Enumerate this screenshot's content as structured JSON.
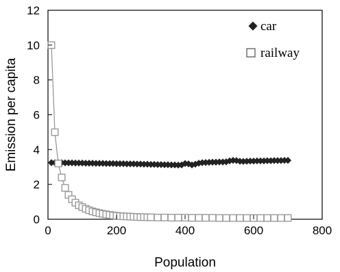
{
  "chart_data": {
    "type": "line",
    "title": "",
    "xlabel": "Population",
    "ylabel": "Emission per capita",
    "xlim": [
      0,
      800
    ],
    "ylim": [
      0,
      12
    ],
    "xticks": [
      0,
      200,
      400,
      600,
      800
    ],
    "yticks": [
      0,
      2,
      4,
      6,
      8,
      10,
      12
    ],
    "grid": false,
    "legend_position": "top-right",
    "series": [
      {
        "name": "car",
        "marker": "diamond-filled",
        "color": "#222222",
        "x": [
          10,
          20,
          30,
          40,
          50,
          60,
          70,
          80,
          90,
          100,
          110,
          120,
          130,
          140,
          150,
          160,
          170,
          180,
          190,
          200,
          210,
          220,
          230,
          240,
          250,
          260,
          270,
          280,
          290,
          300,
          310,
          320,
          330,
          340,
          350,
          360,
          370,
          380,
          390,
          400,
          410,
          420,
          430,
          440,
          450,
          460,
          470,
          480,
          490,
          500,
          510,
          520,
          530,
          540,
          550,
          560,
          570,
          580,
          590,
          600,
          610,
          620,
          630,
          640,
          650,
          660,
          670,
          680,
          690,
          700
        ],
        "y": [
          3.25,
          3.25,
          3.25,
          3.25,
          3.24,
          3.24,
          3.24,
          3.23,
          3.23,
          3.23,
          3.22,
          3.22,
          3.22,
          3.21,
          3.21,
          3.21,
          3.2,
          3.2,
          3.2,
          3.19,
          3.19,
          3.19,
          3.18,
          3.18,
          3.18,
          3.17,
          3.17,
          3.16,
          3.16,
          3.15,
          3.15,
          3.14,
          3.14,
          3.13,
          3.13,
          3.12,
          3.12,
          3.11,
          3.12,
          3.2,
          3.18,
          3.12,
          3.16,
          3.22,
          3.25,
          3.26,
          3.27,
          3.28,
          3.28,
          3.29,
          3.29,
          3.3,
          3.35,
          3.38,
          3.37,
          3.33,
          3.32,
          3.33,
          3.34,
          3.34,
          3.35,
          3.35,
          3.35,
          3.36,
          3.36,
          3.37,
          3.37,
          3.37,
          3.38,
          3.38
        ]
      },
      {
        "name": "railway",
        "marker": "square-open",
        "color": "#999999",
        "x": [
          10,
          20,
          30,
          40,
          50,
          60,
          70,
          80,
          90,
          100,
          110,
          120,
          130,
          140,
          150,
          160,
          170,
          180,
          190,
          200,
          210,
          220,
          230,
          240,
          250,
          260,
          270,
          280,
          290,
          300,
          320,
          340,
          360,
          380,
          400,
          420,
          440,
          460,
          480,
          500,
          520,
          540,
          560,
          580,
          600,
          620,
          640,
          660,
          680,
          700
        ],
        "y": [
          10.0,
          5.0,
          3.2,
          2.4,
          1.8,
          1.4,
          1.15,
          0.95,
          0.8,
          0.7,
          0.6,
          0.52,
          0.45,
          0.4,
          0.35,
          0.31,
          0.28,
          0.25,
          0.22,
          0.2,
          0.18,
          0.17,
          0.16,
          0.15,
          0.14,
          0.13,
          0.12,
          0.12,
          0.11,
          0.11,
          0.1,
          0.1,
          0.09,
          0.09,
          0.09,
          0.08,
          0.08,
          0.08,
          0.08,
          0.07,
          0.07,
          0.07,
          0.07,
          0.07,
          0.07,
          0.07,
          0.07,
          0.07,
          0.07,
          0.07
        ]
      }
    ]
  }
}
